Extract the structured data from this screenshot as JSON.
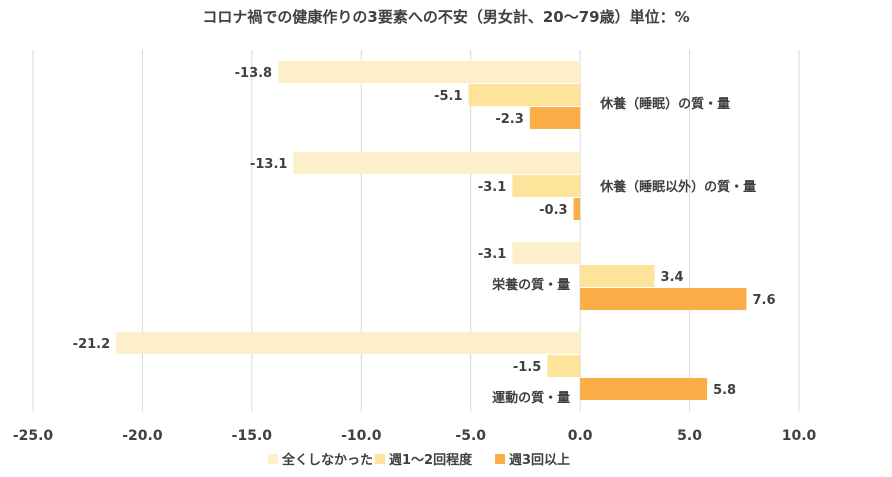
{
  "chart_data": {
    "type": "bar",
    "orientation": "horizontal",
    "title": "コロナ禍での健康作りの3要素への不安（男女計、20～79歳）単位：%",
    "categories": [
      "休養（睡眠）の質・量",
      "休養（睡眠以外）の質・量",
      "栄養の質・量",
      "運動の質・量"
    ],
    "series": [
      {
        "name": "全くしなかった",
        "color": "#fdefc9",
        "values": [
          -13.8,
          -13.1,
          -3.1,
          -21.2
        ]
      },
      {
        "name": "週1～2回程度",
        "color": "#fde49a",
        "values": [
          -5.1,
          -3.1,
          3.4,
          -1.5
        ]
      },
      {
        "name": "週3回以上",
        "color": "#fbad47",
        "values": [
          -2.3,
          -0.3,
          7.6,
          5.8
        ]
      }
    ],
    "value_labels": [
      [
        "-13.8",
        "-13.1",
        "-3.1",
        "-21.2"
      ],
      [
        "-5.1",
        "-3.1",
        "3.4",
        "-1.5"
      ],
      [
        "-2.3",
        "-0.3",
        "7.6",
        "5.8"
      ]
    ],
    "xlim": [
      -25,
      10
    ],
    "xticks": [
      -25,
      -20,
      -15,
      -10,
      -5,
      0,
      5,
      10
    ],
    "xtick_labels": [
      "-25.0",
      "-20.0",
      "-15.0",
      "-10.0",
      "-5.0",
      "0.0",
      "5.0",
      "10.0"
    ],
    "xlabel": "",
    "ylabel": "",
    "grid": true,
    "legend_position": "bottom"
  }
}
